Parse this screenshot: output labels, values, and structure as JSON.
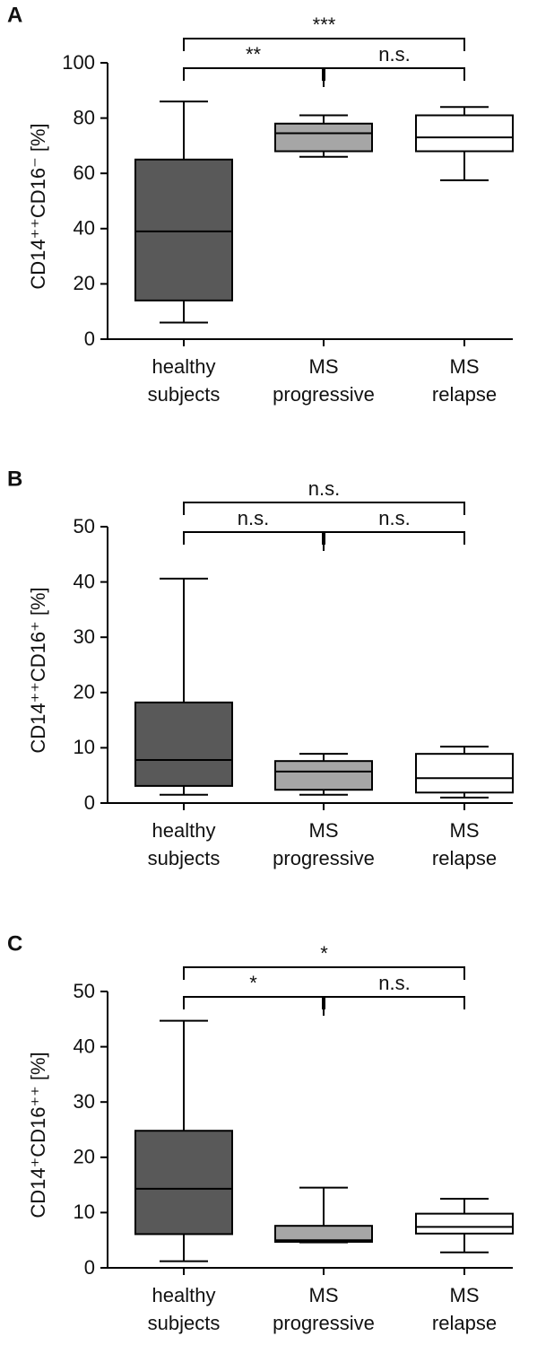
{
  "chart_data": [
    {
      "type": "box",
      "panel": "A",
      "ylabel": "CD14⁺⁺CD16⁻ [%]",
      "categories": [
        [
          "healthy",
          "subjects"
        ],
        [
          "MS",
          "progressive"
        ],
        [
          "MS",
          "relapse"
        ]
      ],
      "colors": [
        "#595959",
        "#a6a6a6",
        "#ffffff"
      ],
      "boxes": [
        {
          "min": 6,
          "q1": 14,
          "median": 39,
          "q3": 65,
          "max": 86
        },
        {
          "min": 66,
          "q1": 68,
          "median": 74.5,
          "q3": 78,
          "max": 81
        },
        {
          "min": 57.5,
          "q1": 68,
          "median": 73,
          "q3": 81,
          "max": 84
        }
      ],
      "ylim": [
        0,
        100
      ],
      "yticks": [
        0,
        20,
        40,
        60,
        80,
        100
      ],
      "brackets": {
        "top": "***",
        "left": "**",
        "right": "n.s."
      }
    },
    {
      "type": "box",
      "panel": "B",
      "ylabel": "CD14⁺⁺CD16⁺ [%]",
      "categories": [
        [
          "healthy",
          "subjects"
        ],
        [
          "MS",
          "progressive"
        ],
        [
          "MS",
          "relapse"
        ]
      ],
      "colors": [
        "#595959",
        "#a6a6a6",
        "#ffffff"
      ],
      "boxes": [
        {
          "min": 1.5,
          "q1": 3.1,
          "median": 7.8,
          "q3": 18.2,
          "max": 40.6
        },
        {
          "min": 1.5,
          "q1": 2.4,
          "median": 5.7,
          "q3": 7.6,
          "max": 8.9
        },
        {
          "min": 1.0,
          "q1": 1.9,
          "median": 4.5,
          "q3": 8.9,
          "max": 10.2
        }
      ],
      "ylim": [
        0,
        50
      ],
      "yticks": [
        0,
        10,
        20,
        30,
        40,
        50
      ],
      "brackets": {
        "top": "n.s.",
        "left": "n.s.",
        "right": "n.s."
      }
    },
    {
      "type": "box",
      "panel": "C",
      "ylabel": "CD14⁺CD16⁺⁺ [%]",
      "categories": [
        [
          "healthy",
          "subjects"
        ],
        [
          "MS",
          "progressive"
        ],
        [
          "MS",
          "relapse"
        ]
      ],
      "colors": [
        "#595959",
        "#a6a6a6",
        "#ffffff"
      ],
      "boxes": [
        {
          "min": 1.2,
          "q1": 6.1,
          "median": 14.3,
          "q3": 24.8,
          "max": 44.7
        },
        {
          "min": 4.6,
          "q1": 4.7,
          "median": 5.0,
          "q3": 7.6,
          "max": 14.5
        },
        {
          "min": 2.8,
          "q1": 6.2,
          "median": 7.4,
          "q3": 9.8,
          "max": 12.5
        }
      ],
      "ylim": [
        0,
        50
      ],
      "yticks": [
        0,
        10,
        20,
        30,
        40,
        50
      ],
      "brackets": {
        "top": "*",
        "left": "*",
        "right": "n.s."
      }
    }
  ]
}
